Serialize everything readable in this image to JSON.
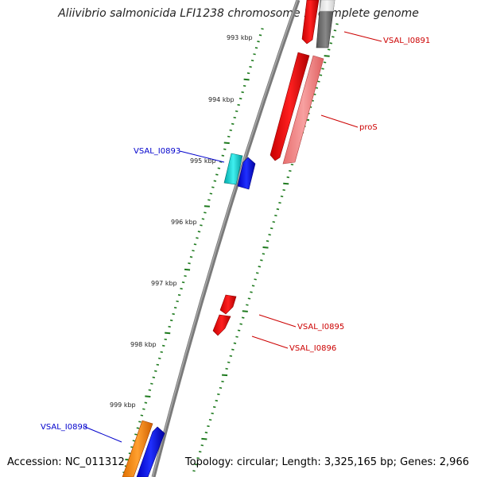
{
  "title": "Aliivibrio salmonicida LFI1238 chromosome 1, complete genome",
  "accession": "Accession: NC_011312",
  "summary": "Topology: circular; Length: 3,325,165 bp; Genes: 2,966",
  "colors": {
    "backbone": "#7a7a7a",
    "tick": "#1e7a1e",
    "forward_label": "#cc0000",
    "reverse_label": "#0000cc"
  },
  "kbp_labels": [
    "993 kbp",
    "994 kbp",
    "995 kbp",
    "996 kbp",
    "997 kbp",
    "998 kbp",
    "999 kbp"
  ],
  "features": [
    {
      "name": "VSAL_I0891",
      "strand": "forward",
      "color": "#ff0000"
    },
    {
      "name": "proS",
      "strand": "forward",
      "color": "#ff0000"
    },
    {
      "name": "VSAL_I0893",
      "strand": "reverse",
      "color": "#00cccc"
    },
    {
      "name": "VSAL_I0895",
      "strand": "forward",
      "color": "#ff0000"
    },
    {
      "name": "VSAL_I0896",
      "strand": "forward",
      "color": "#ff0000"
    },
    {
      "name": "VSAL_I0898",
      "strand": "reverse",
      "color": "#ff8c00"
    }
  ]
}
